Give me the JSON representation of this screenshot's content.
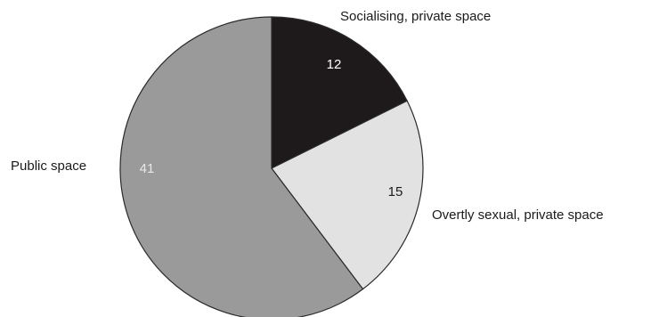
{
  "chart_data": {
    "type": "pie",
    "slices": [
      {
        "label": "Socialising, private space",
        "value": 12,
        "color": "#1e1a1c",
        "label_color": "#ffffff"
      },
      {
        "label": "Overtly sexual, private space",
        "value": 15,
        "color": "#e2e2e2",
        "label_color": "#1a1a1a"
      },
      {
        "label": "Public space",
        "value": 41,
        "color": "#9a9a9a",
        "label_color": "#e8e8e8"
      }
    ],
    "start_angle": "12 o'clock",
    "direction": "clockwise"
  }
}
